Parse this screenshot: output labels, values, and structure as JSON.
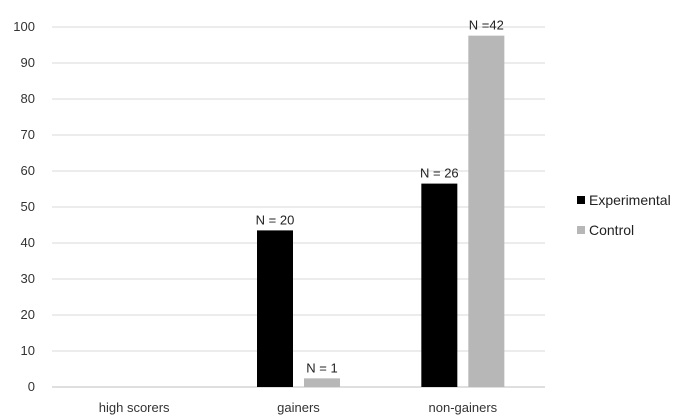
{
  "chart_data": {
    "type": "bar",
    "categories": [
      "high scorers",
      "gainers",
      "non-gainers"
    ],
    "series": [
      {
        "name": "Experimental",
        "color": "#000000",
        "values": [
          0,
          43.5,
          56.5
        ],
        "labels": [
          "",
          "N = 20",
          "N = 26"
        ]
      },
      {
        "name": "Control",
        "color": "#b7b7b7",
        "values": [
          0,
          2.4,
          97.6
        ],
        "labels": [
          "",
          "N = 1",
          "N =42"
        ]
      }
    ],
    "ylim": [
      0,
      100
    ],
    "yticks": [
      0,
      10,
      20,
      30,
      40,
      50,
      60,
      70,
      80,
      90,
      100
    ],
    "grid": true,
    "legend_position": "right",
    "title": "",
    "xlabel": "",
    "ylabel": ""
  }
}
